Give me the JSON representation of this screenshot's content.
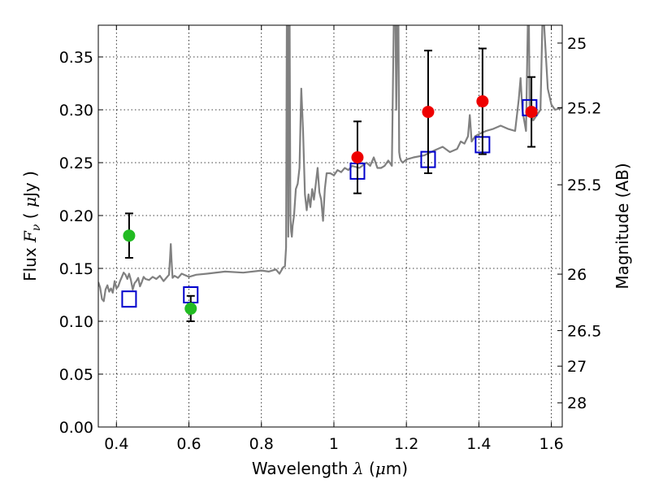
{
  "chart_data": {
    "type": "scatter",
    "title": "",
    "xlabel": "Wavelength  λ (μm)",
    "ylabel": "Flux  F_ν ( μJy )",
    "ylabel_right": "Magnitude (AB)",
    "xlim": [
      0.35,
      1.63
    ],
    "ylim": [
      0.0,
      0.38
    ],
    "grid": true,
    "x_ticks": [
      {
        "value": 0.4,
        "label": "0.4"
      },
      {
        "value": 0.6,
        "label": "0.6"
      },
      {
        "value": 0.8,
        "label": "0.8"
      },
      {
        "value": 1.0,
        "label": "1"
      },
      {
        "value": 1.2,
        "label": "1.2"
      },
      {
        "value": 1.4,
        "label": "1.4"
      },
      {
        "value": 1.6,
        "label": "1.6"
      }
    ],
    "y_ticks": [
      {
        "value": 0.0,
        "label": "0.00"
      },
      {
        "value": 0.05,
        "label": "0.05"
      },
      {
        "value": 0.1,
        "label": "0.10"
      },
      {
        "value": 0.15,
        "label": "0.15"
      },
      {
        "value": 0.2,
        "label": "0.20"
      },
      {
        "value": 0.25,
        "label": "0.25"
      },
      {
        "value": 0.3,
        "label": "0.30"
      },
      {
        "value": 0.35,
        "label": "0.35"
      }
    ],
    "right_ticks": [
      {
        "mag": 25,
        "label": "25"
      },
      {
        "mag": 25.2,
        "label": "25.2"
      },
      {
        "mag": 25.5,
        "label": "25.5"
      },
      {
        "mag": 26,
        "label": "26"
      },
      {
        "mag": 26.5,
        "label": "26.5"
      },
      {
        "mag": 27,
        "label": "27"
      },
      {
        "mag": 28,
        "label": "28"
      }
    ],
    "series": [
      {
        "marker": "line",
        "color": "#808080",
        "x": [
          0.35,
          0.355,
          0.36,
          0.365,
          0.37,
          0.375,
          0.38,
          0.385,
          0.39,
          0.395,
          0.4,
          0.405,
          0.41,
          0.415,
          0.42,
          0.425,
          0.43,
          0.435,
          0.44,
          0.445,
          0.45,
          0.455,
          0.46,
          0.465,
          0.47,
          0.475,
          0.48,
          0.49,
          0.5,
          0.51,
          0.52,
          0.53,
          0.54,
          0.545,
          0.548,
          0.55,
          0.552,
          0.555,
          0.56,
          0.57,
          0.58,
          0.6,
          0.62,
          0.65,
          0.7,
          0.75,
          0.8,
          0.82,
          0.84,
          0.85,
          0.86,
          0.865,
          0.868,
          0.87,
          0.872,
          0.874,
          0.876,
          0.878,
          0.88,
          0.882,
          0.884,
          0.886,
          0.89,
          0.895,
          0.9,
          0.905,
          0.91,
          0.915,
          0.92,
          0.925,
          0.93,
          0.935,
          0.94,
          0.945,
          0.95,
          0.955,
          0.96,
          0.965,
          0.97,
          0.975,
          0.98,
          0.99,
          1.0,
          1.01,
          1.02,
          1.03,
          1.04,
          1.05,
          1.07,
          1.09,
          1.1,
          1.11,
          1.12,
          1.13,
          1.14,
          1.15,
          1.16,
          1.165,
          1.17,
          1.172,
          1.175,
          1.178,
          1.18,
          1.182,
          1.185,
          1.19,
          1.2,
          1.22,
          1.25,
          1.28,
          1.3,
          1.32,
          1.34,
          1.35,
          1.36,
          1.37,
          1.375,
          1.38,
          1.39,
          1.4,
          1.42,
          1.44,
          1.46,
          1.48,
          1.5,
          1.51,
          1.515,
          1.52,
          1.53,
          1.535,
          1.538,
          1.54,
          1.55,
          1.56,
          1.57,
          1.575,
          1.58,
          1.59,
          1.6,
          1.61,
          1.63
        ],
        "y": [
          0.137,
          0.132,
          0.121,
          0.119,
          0.13,
          0.134,
          0.128,
          0.131,
          0.127,
          0.138,
          0.131,
          0.133,
          0.138,
          0.142,
          0.146,
          0.144,
          0.14,
          0.145,
          0.139,
          0.13,
          0.136,
          0.138,
          0.141,
          0.133,
          0.137,
          0.142,
          0.14,
          0.139,
          0.142,
          0.14,
          0.143,
          0.138,
          0.142,
          0.144,
          0.16,
          0.173,
          0.158,
          0.141,
          0.143,
          0.141,
          0.145,
          0.142,
          0.144,
          0.145,
          0.147,
          0.146,
          0.148,
          0.147,
          0.149,
          0.145,
          0.151,
          0.152,
          0.17,
          0.38,
          0.38,
          0.18,
          0.38,
          0.38,
          0.2,
          0.185,
          0.18,
          0.19,
          0.2,
          0.225,
          0.23,
          0.245,
          0.32,
          0.28,
          0.22,
          0.205,
          0.22,
          0.208,
          0.225,
          0.215,
          0.23,
          0.245,
          0.222,
          0.215,
          0.195,
          0.225,
          0.24,
          0.24,
          0.238,
          0.243,
          0.241,
          0.245,
          0.243,
          0.247,
          0.245,
          0.25,
          0.247,
          0.255,
          0.245,
          0.245,
          0.247,
          0.252,
          0.247,
          0.38,
          0.38,
          0.3,
          0.38,
          0.38,
          0.26,
          0.255,
          0.252,
          0.25,
          0.253,
          0.255,
          0.257,
          0.262,
          0.265,
          0.26,
          0.263,
          0.27,
          0.268,
          0.275,
          0.295,
          0.27,
          0.275,
          0.277,
          0.28,
          0.282,
          0.285,
          0.282,
          0.28,
          0.31,
          0.33,
          0.3,
          0.28,
          0.38,
          0.38,
          0.3,
          0.29,
          0.295,
          0.3,
          0.38,
          0.38,
          0.32,
          0.305,
          0.3,
          0.302
        ]
      },
      {
        "marker": "square",
        "color": "#0000cc",
        "x": [
          0.435,
          0.605,
          1.065,
          1.26,
          1.41,
          1.54
        ],
        "y": [
          0.121,
          0.125,
          0.242,
          0.253,
          0.267,
          0.302
        ]
      },
      {
        "marker": "circle",
        "color": "#22bb22",
        "x": [
          0.435,
          0.605
        ],
        "y": [
          0.181,
          0.112
        ],
        "yerr": [
          0.021,
          0.012
        ]
      },
      {
        "marker": "circle",
        "color": "#ee0000",
        "x": [
          1.065,
          1.26,
          1.41,
          1.545
        ],
        "y": [
          0.255,
          0.298,
          0.308,
          0.298
        ],
        "yerr": [
          0.034,
          0.058,
          0.05,
          0.033
        ]
      }
    ]
  }
}
